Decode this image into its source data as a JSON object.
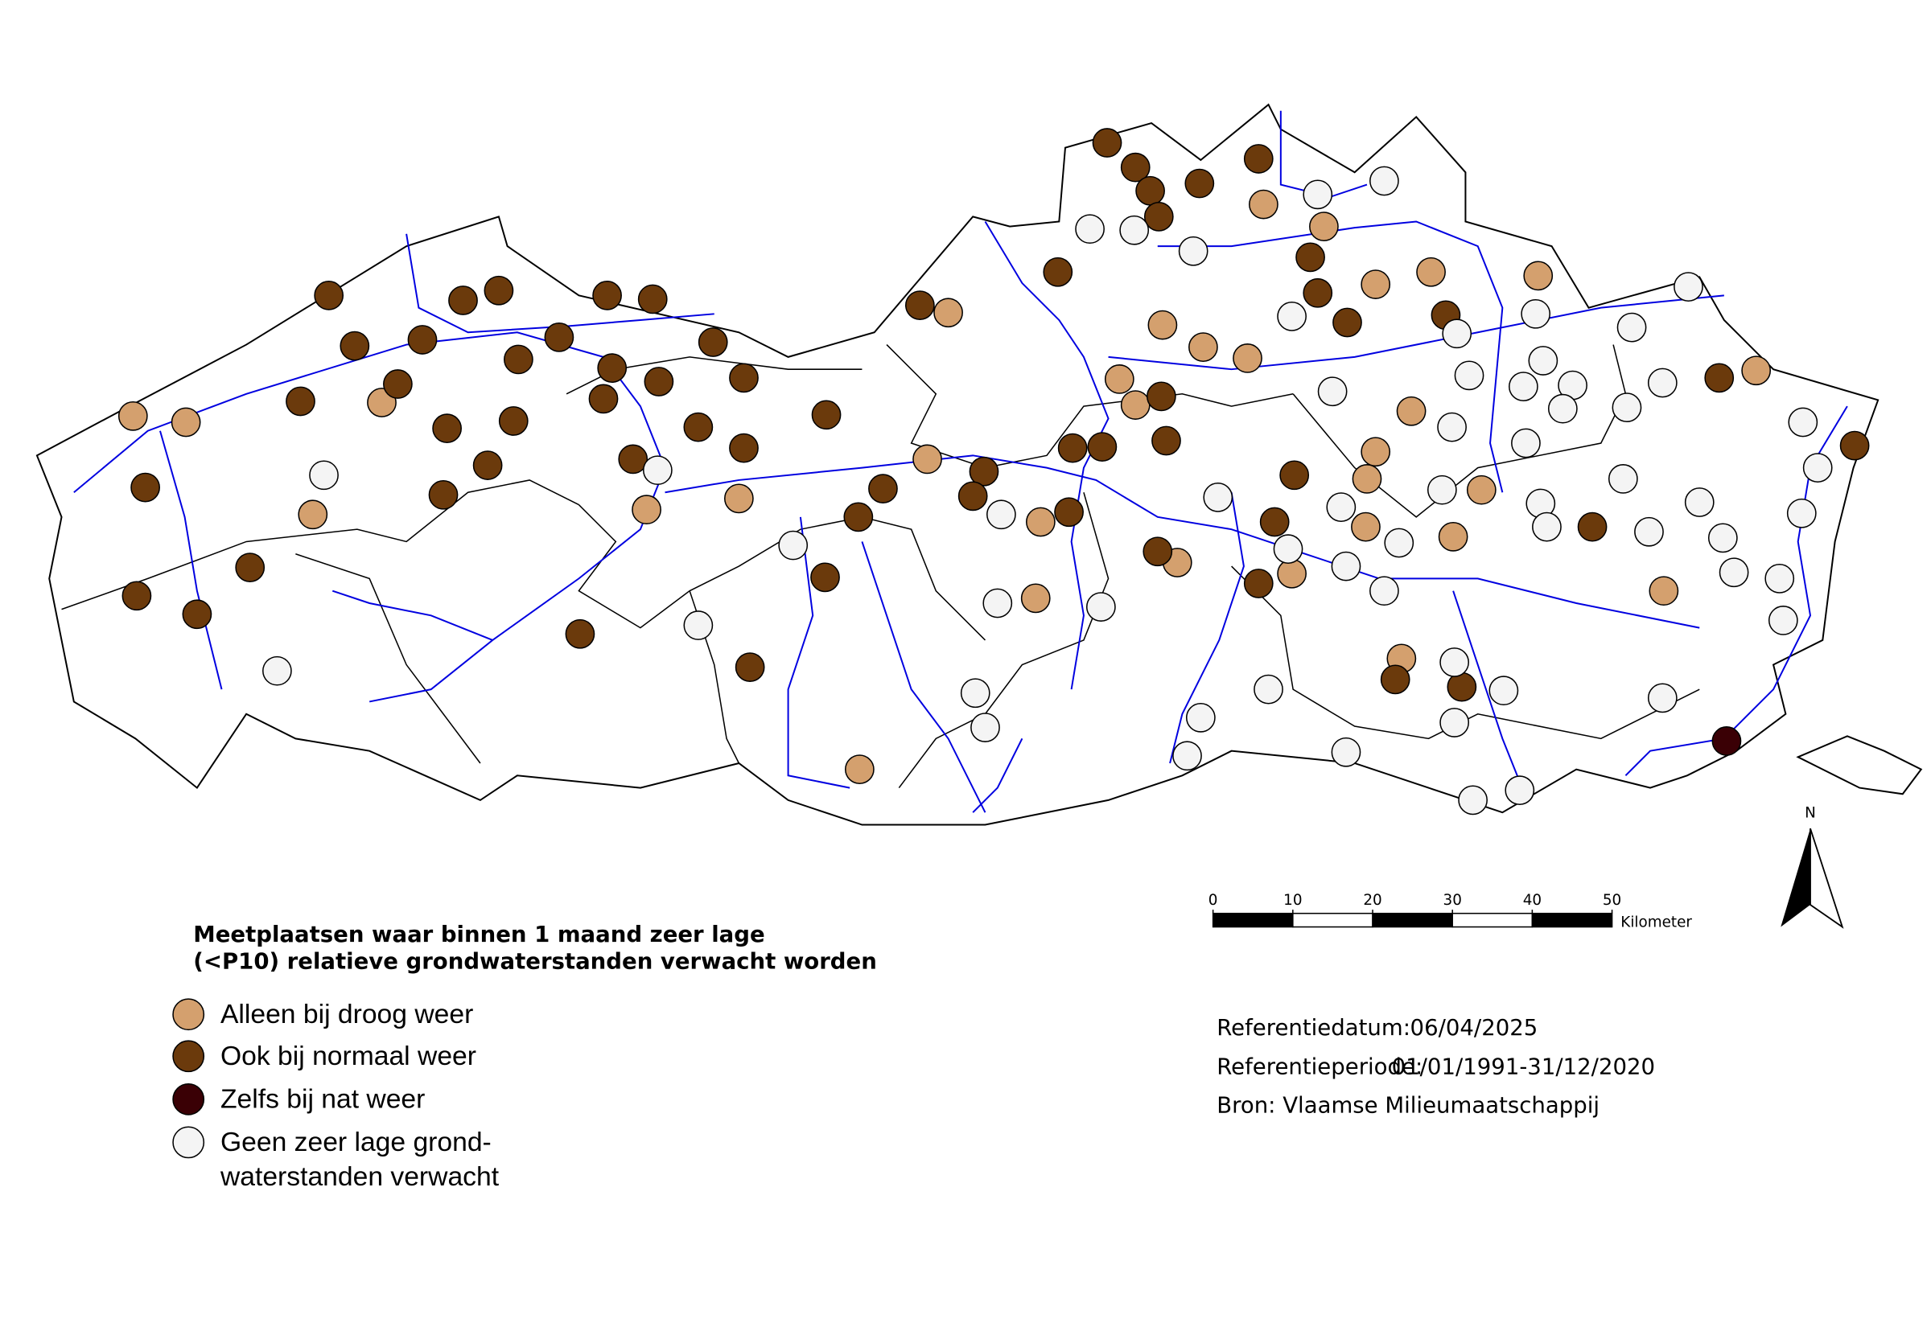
{
  "title": [
    "Meetplaatsen waar binnen 1 maand zeer lage",
    "(<P10) relatieve grondwaterstanden verwacht worden"
  ],
  "legend": [
    {
      "lines": [
        "Alleen bij droog weer"
      ],
      "color": "#d4a06e"
    },
    {
      "lines": [
        "Ook bij normaal weer"
      ],
      "color": "#6b3a0c"
    },
    {
      "lines": [
        "Zelfs bij nat weer"
      ],
      "color": "#3a0005"
    },
    {
      "lines": [
        "Geen zeer lage grond-",
        "waterstanden verwacht"
      ],
      "color": "#f4f4f4"
    }
  ],
  "scale": {
    "ticks": [
      0,
      10,
      20,
      30,
      40,
      50
    ],
    "unit": "Kilometer"
  },
  "north": "N",
  "info": [
    {
      "label": "Referentiedatum:",
      "value": "06/04/2025"
    },
    {
      "label": "Referentieperiode:",
      "value": "01/01/1991-31/12/2020"
    },
    {
      "label": "Bron: Vlaamse Milieumaatschappij"
    }
  ]
}
